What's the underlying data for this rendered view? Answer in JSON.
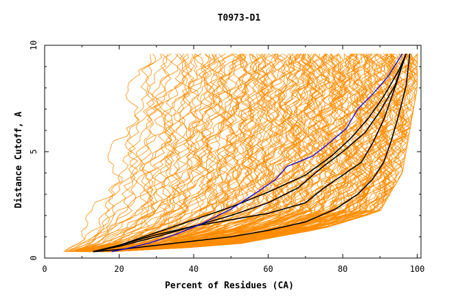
{
  "chart_data": {
    "type": "line",
    "title": "T0973-D1",
    "xlabel": "Percent of Residues (CA)",
    "ylabel": "Distance Cutoff, A",
    "xlim": [
      0,
      101
    ],
    "ylim": [
      0,
      10
    ],
    "xticks": [
      "0",
      "20",
      "40",
      "60",
      "80",
      "100"
    ],
    "yticks": [
      "0",
      "5",
      "10"
    ],
    "grid": false,
    "legend": "none",
    "colors": {
      "background_series": "#ff8c00",
      "highlight": "#0000ff",
      "reference": "#000000"
    },
    "background_series_count": 180,
    "background_envelope": {
      "left_edge": [
        [
          4.5,
          0.3
        ],
        [
          10,
          1.5
        ],
        [
          14,
          3.0
        ],
        [
          17,
          4.8
        ],
        [
          20,
          6.5
        ],
        [
          23,
          8.5
        ],
        [
          25,
          9.6
        ]
      ],
      "right_edge": [
        [
          18,
          0.3
        ],
        [
          50,
          0.6
        ],
        [
          75,
          1.4
        ],
        [
          90,
          2.2
        ],
        [
          96,
          4.0
        ],
        [
          100,
          8.0
        ],
        [
          100,
          9.6
        ]
      ]
    },
    "series": [
      {
        "role": "highlight",
        "color": "#0000ff",
        "x": [
          18,
          22,
          28,
          35,
          42,
          50,
          57,
          62,
          65,
          72,
          77,
          81,
          84,
          88,
          92,
          96
        ],
        "y": [
          0.3,
          0.45,
          0.7,
          1.1,
          1.6,
          2.3,
          3.1,
          3.7,
          4.3,
          4.8,
          5.5,
          6.1,
          7.0,
          7.7,
          8.5,
          9.6
        ]
      },
      {
        "role": "reference",
        "color": "#000000",
        "x": [
          13,
          20,
          30,
          40,
          50,
          60,
          70,
          77,
          82,
          87,
          91,
          95,
          97
        ],
        "y": [
          0.3,
          0.6,
          1.2,
          1.8,
          2.4,
          3.1,
          3.9,
          4.8,
          5.6,
          6.6,
          7.6,
          8.8,
          9.6
        ]
      },
      {
        "role": "reference",
        "color": "#000000",
        "x": [
          13,
          20,
          30,
          40,
          50,
          60,
          68,
          74,
          80,
          86,
          90,
          94,
          97
        ],
        "y": [
          0.3,
          0.55,
          1.0,
          1.5,
          2.0,
          2.6,
          3.3,
          4.2,
          5.0,
          5.9,
          6.9,
          8.1,
          9.6
        ]
      },
      {
        "role": "reference",
        "color": "#000000",
        "x": [
          13,
          20,
          30,
          40,
          50,
          60,
          70,
          75,
          80,
          85,
          88,
          91,
          94,
          97
        ],
        "y": [
          0.3,
          0.6,
          1.1,
          1.5,
          1.8,
          2.1,
          2.6,
          3.3,
          3.9,
          4.5,
          5.4,
          6.5,
          8.0,
          9.6
        ]
      },
      {
        "role": "reference",
        "color": "#000000",
        "x": [
          13,
          20,
          30,
          40,
          50,
          60,
          70,
          78,
          84,
          88,
          91,
          93,
          95,
          97,
          98
        ],
        "y": [
          0.3,
          0.4,
          0.6,
          0.8,
          1.0,
          1.3,
          1.7,
          2.3,
          3.0,
          3.7,
          4.5,
          5.5,
          6.7,
          8.1,
          9.6
        ]
      }
    ]
  }
}
